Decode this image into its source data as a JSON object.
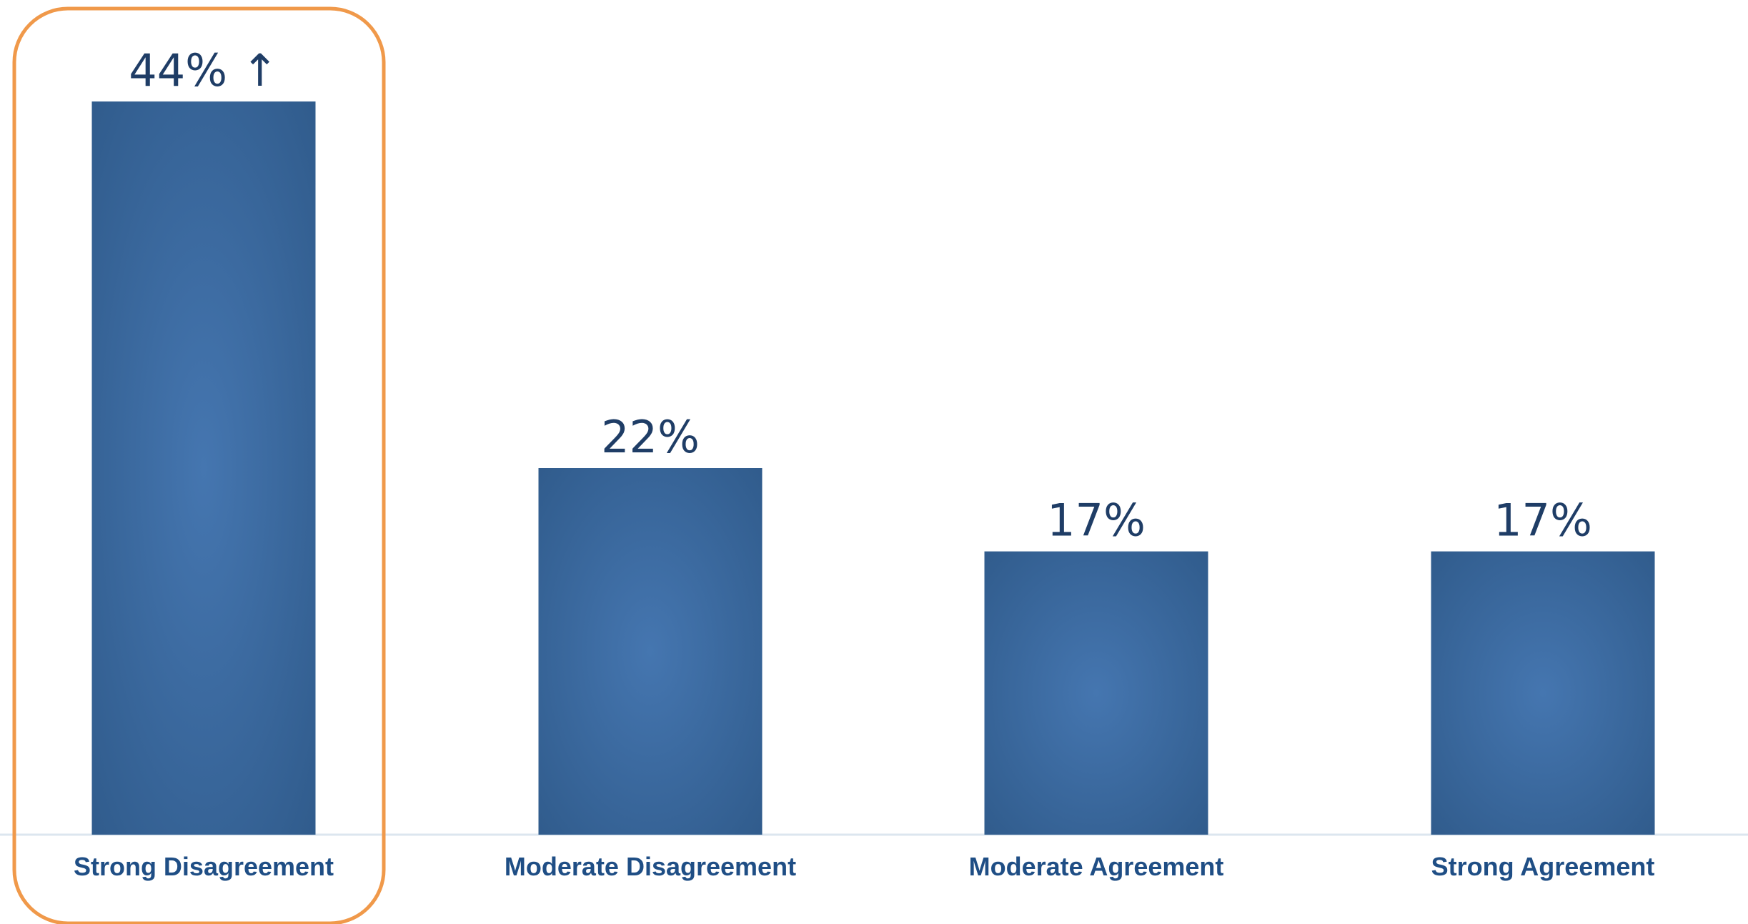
{
  "chart_data": {
    "type": "bar",
    "categories": [
      "Strong Disagreement",
      "Moderate Disagreement",
      "Moderate Agreement",
      "Strong Agreement"
    ],
    "values": [
      44,
      22,
      17,
      17
    ],
    "data_labels": [
      "44% ↑",
      "22%",
      "17%",
      "17%"
    ],
    "title": "",
    "xlabel": "",
    "ylabel": "",
    "ylim": [
      0,
      44
    ],
    "grid": false,
    "legend": "none",
    "highlighted_category": "Strong Disagreement"
  },
  "colors": {
    "bar_edge": "#2f5a8a",
    "bar_center": "#4576b0",
    "label_text": "#1f4e85",
    "value_text": "#1f3d66",
    "highlight_border": "#f0994a",
    "baseline": "#dce6ef"
  }
}
